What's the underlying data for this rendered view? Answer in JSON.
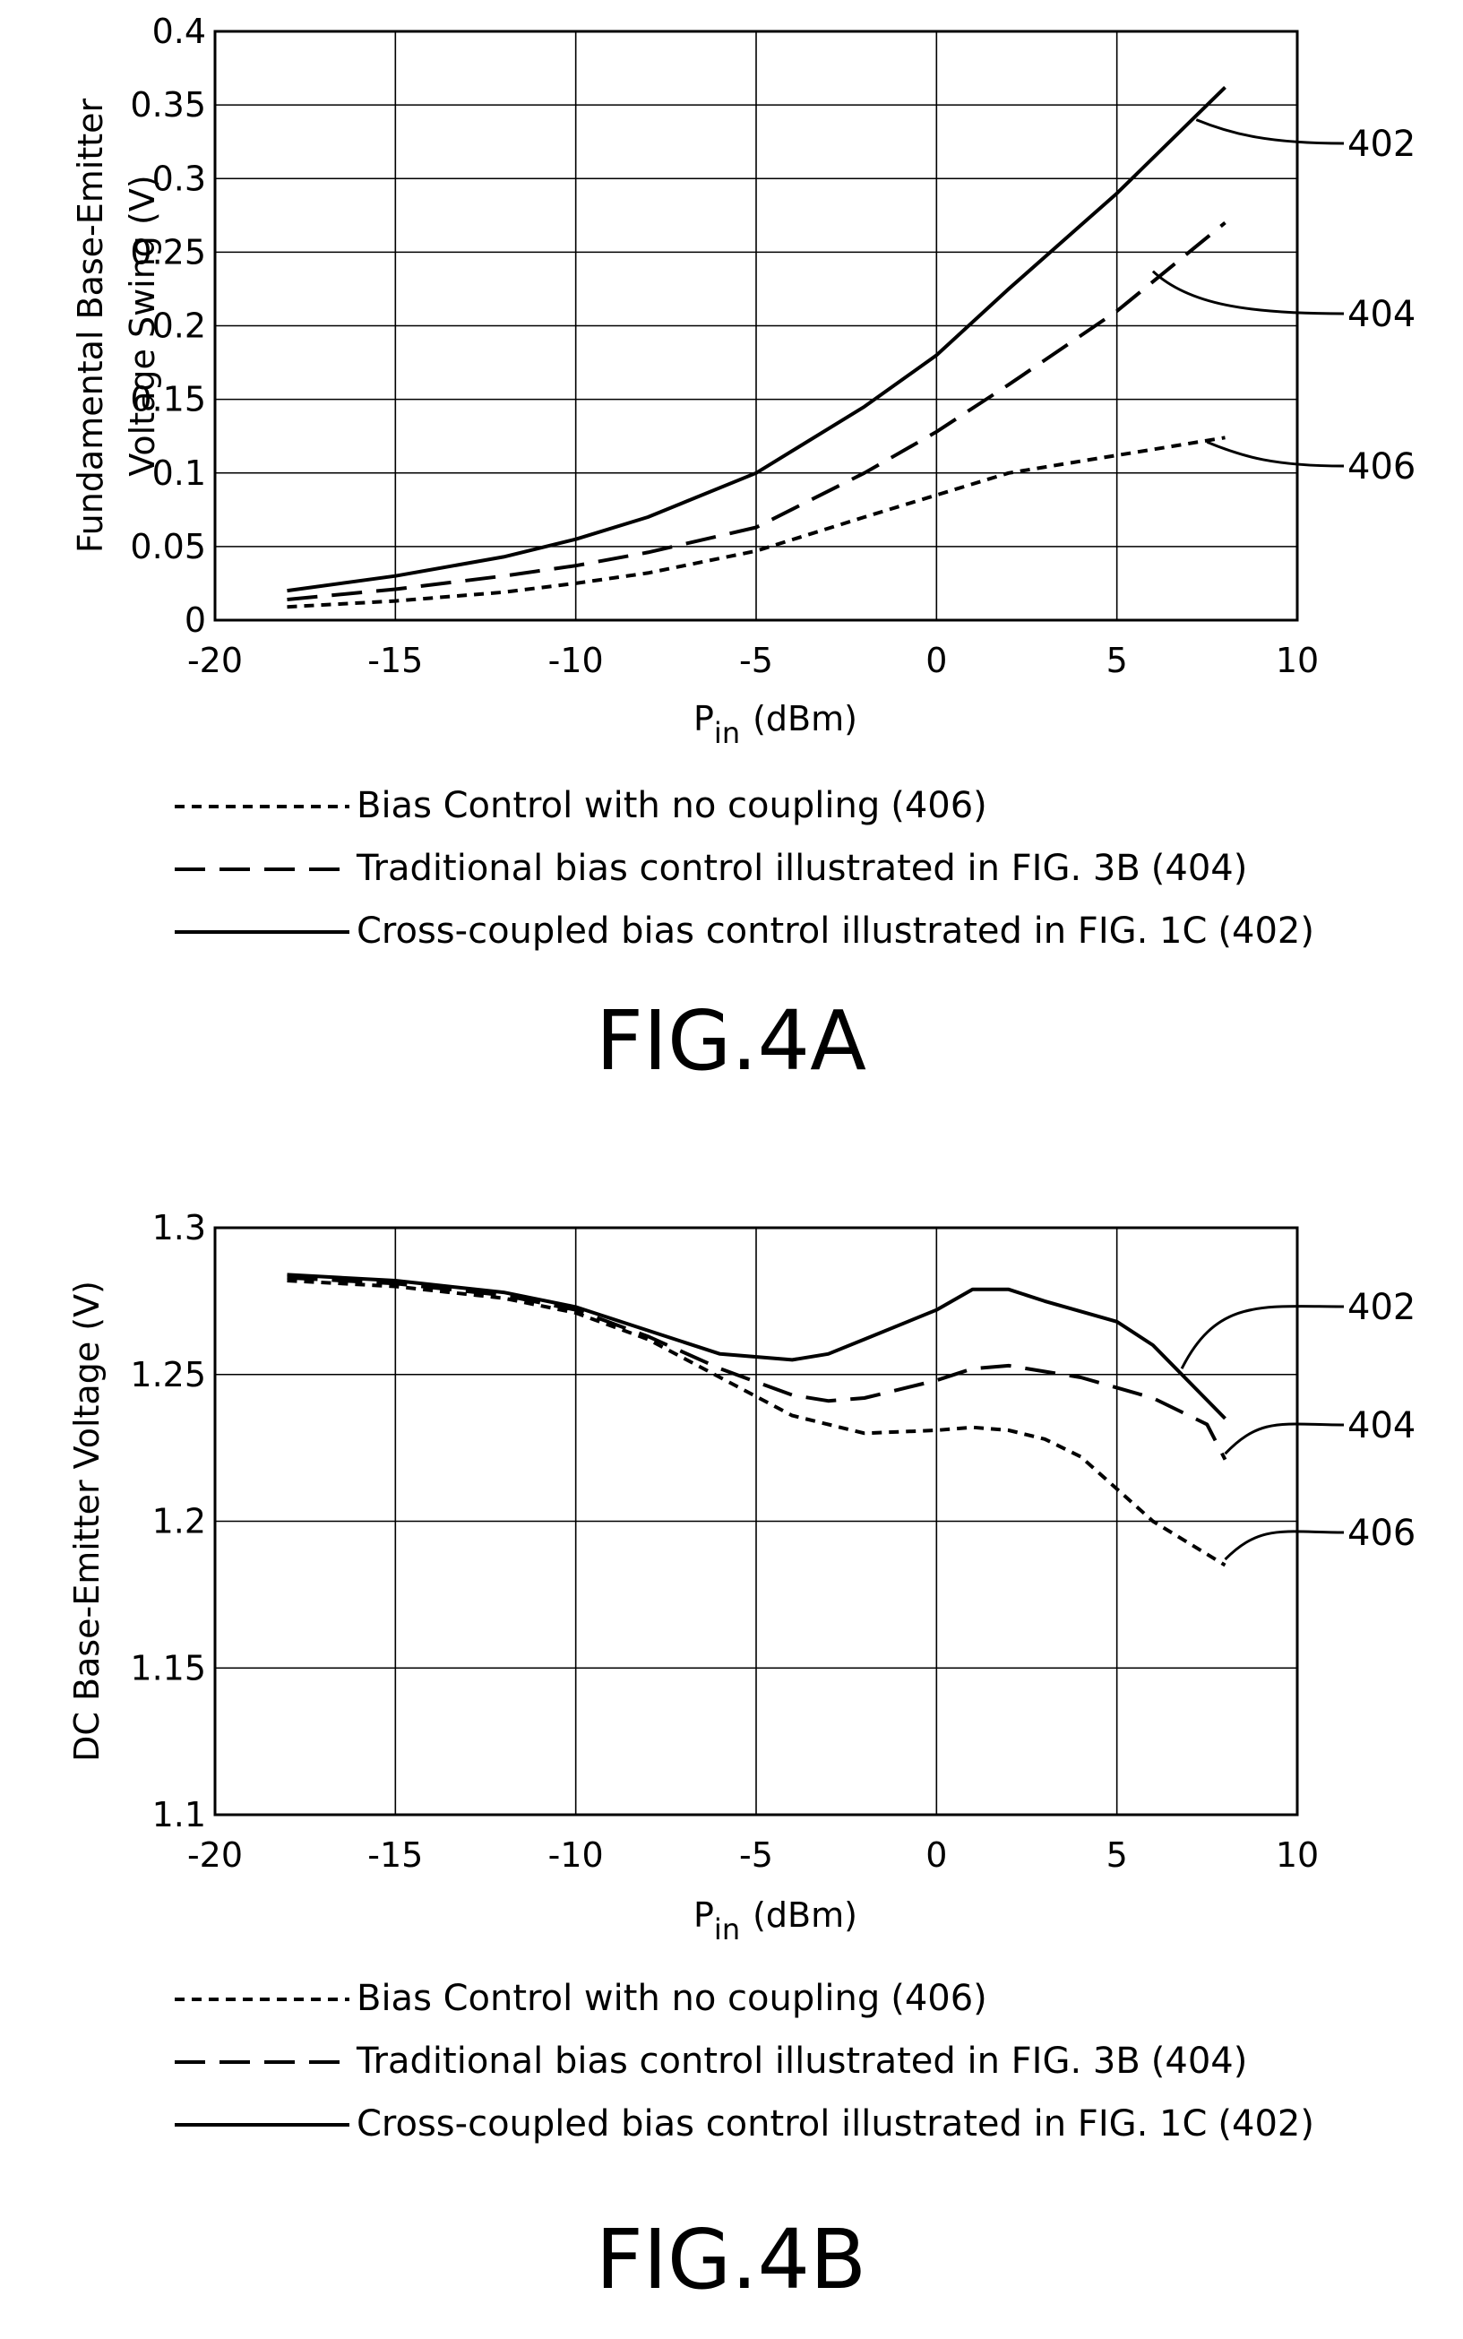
{
  "chart_data": [
    {
      "type": "line",
      "figure_label": "FIG.4A",
      "xlabel_main": "P",
      "xlabel_sub": "in",
      "xlabel_unit": "(dBm)",
      "ylabel_lines": [
        "Fundamental Base-Emitter",
        "Voltage Swing (V)"
      ],
      "xlim": [
        -20,
        10
      ],
      "ylim": [
        0,
        0.4
      ],
      "x_ticks": [
        -20,
        -15,
        -10,
        -5,
        0,
        5,
        10
      ],
      "x_tick_labels": [
        "-20",
        "-15",
        "-10",
        "-5",
        "0",
        "5",
        "10"
      ],
      "y_ticks": [
        0,
        0.05,
        0.1,
        0.15,
        0.2,
        0.25,
        0.3,
        0.35,
        0.4
      ],
      "y_tick_labels": [
        "0",
        "0.05",
        "0.1",
        "0.15",
        "0.2",
        "0.25",
        "0.3",
        "0.35",
        "0.4"
      ],
      "grid": true,
      "series": [
        {
          "ref": "402",
          "style": "solid",
          "x": [
            -18,
            -15,
            -12,
            -10,
            -8,
            -5,
            -2,
            0,
            2,
            5,
            8
          ],
          "y": [
            0.02,
            0.03,
            0.043,
            0.055,
            0.07,
            0.1,
            0.145,
            0.18,
            0.225,
            0.29,
            0.362
          ]
        },
        {
          "ref": "404",
          "style": "dashed",
          "x": [
            -18,
            -15,
            -12,
            -10,
            -8,
            -5,
            -2,
            0,
            2,
            5,
            8
          ],
          "y": [
            0.014,
            0.021,
            0.03,
            0.037,
            0.046,
            0.063,
            0.1,
            0.128,
            0.16,
            0.21,
            0.27
          ]
        },
        {
          "ref": "406",
          "style": "dotted",
          "x": [
            -18,
            -15,
            -12,
            -10,
            -8,
            -5,
            -2,
            0,
            2,
            4,
            6,
            8
          ],
          "y": [
            0.009,
            0.013,
            0.019,
            0.025,
            0.032,
            0.047,
            0.07,
            0.085,
            0.1,
            0.108,
            0.116,
            0.124
          ]
        }
      ],
      "callouts": [
        {
          "label": "402",
          "target_x": 7.2,
          "target_y": 0.34
        },
        {
          "label": "404",
          "target_x": 6,
          "target_y": 0.237
        },
        {
          "label": "406",
          "target_x": 7.5,
          "target_y": 0.121
        }
      ],
      "legend": [
        {
          "style": "dotted",
          "text": "Bias Control with no coupling",
          "ref": "(406)"
        },
        {
          "style": "dashed",
          "text": "Traditional bias control illustrated in FIG. 3B",
          "ref": "(404)"
        },
        {
          "style": "solid",
          "text": "Cross-coupled bias control illustrated in FIG. 1C",
          "ref": "(402)"
        }
      ]
    },
    {
      "type": "line",
      "figure_label": "FIG.4B",
      "xlabel_main": "P",
      "xlabel_sub": "in",
      "xlabel_unit": "(dBm)",
      "ylabel_lines": [
        "DC Base-Emitter Voltage (V)"
      ],
      "xlim": [
        -20,
        10
      ],
      "ylim": [
        1.1,
        1.3
      ],
      "x_ticks": [
        -20,
        -15,
        -10,
        -5,
        0,
        5,
        10
      ],
      "x_tick_labels": [
        "-20",
        "-15",
        "-10",
        "-5",
        "0",
        "5",
        "10"
      ],
      "y_ticks": [
        1.1,
        1.15,
        1.2,
        1.25,
        1.3
      ],
      "y_tick_labels": [
        "1.1",
        "1.15",
        "1.2",
        "1.25",
        "1.3"
      ],
      "grid": true,
      "series": [
        {
          "ref": "402",
          "style": "solid",
          "x": [
            -18,
            -15,
            -12,
            -10,
            -8,
            -6,
            -4,
            -3,
            -2,
            0,
            1,
            2,
            3,
            5,
            6,
            8
          ],
          "y": [
            1.284,
            1.282,
            1.278,
            1.273,
            1.265,
            1.257,
            1.255,
            1.257,
            1.262,
            1.272,
            1.279,
            1.279,
            1.275,
            1.268,
            1.26,
            1.235
          ]
        },
        {
          "ref": "404",
          "style": "dashed",
          "x": [
            -18,
            -15,
            -12,
            -10,
            -8,
            -6,
            -4,
            -3,
            -2,
            0,
            1,
            2,
            4,
            6,
            7.5,
            8
          ],
          "y": [
            1.283,
            1.281,
            1.277,
            1.272,
            1.263,
            1.252,
            1.243,
            1.241,
            1.242,
            1.248,
            1.252,
            1.253,
            1.249,
            1.242,
            1.233,
            1.221
          ]
        },
        {
          "ref": "406",
          "style": "dotted",
          "x": [
            -18,
            -15,
            -12,
            -10,
            -8,
            -6,
            -4,
            -2,
            0,
            1,
            2,
            3,
            4,
            5,
            6,
            8
          ],
          "y": [
            1.282,
            1.28,
            1.276,
            1.271,
            1.262,
            1.249,
            1.236,
            1.23,
            1.231,
            1.232,
            1.231,
            1.228,
            1.222,
            1.211,
            1.2,
            1.185
          ]
        }
      ],
      "callouts": [
        {
          "label": "402",
          "target_x": 6.8,
          "target_y": 1.252
        },
        {
          "label": "404",
          "target_x": 8,
          "target_y": 1.223
        },
        {
          "label": "406",
          "target_x": 8,
          "target_y": 1.187
        }
      ],
      "legend": [
        {
          "style": "dotted",
          "text": "Bias Control with no coupling",
          "ref": "(406)"
        },
        {
          "style": "dashed",
          "text": "Traditional bias control illustrated in FIG. 3B",
          "ref": "(404)"
        },
        {
          "style": "solid",
          "text": "Cross-coupled bias control illustrated in FIG. 1C",
          "ref": "(402)"
        }
      ]
    }
  ]
}
